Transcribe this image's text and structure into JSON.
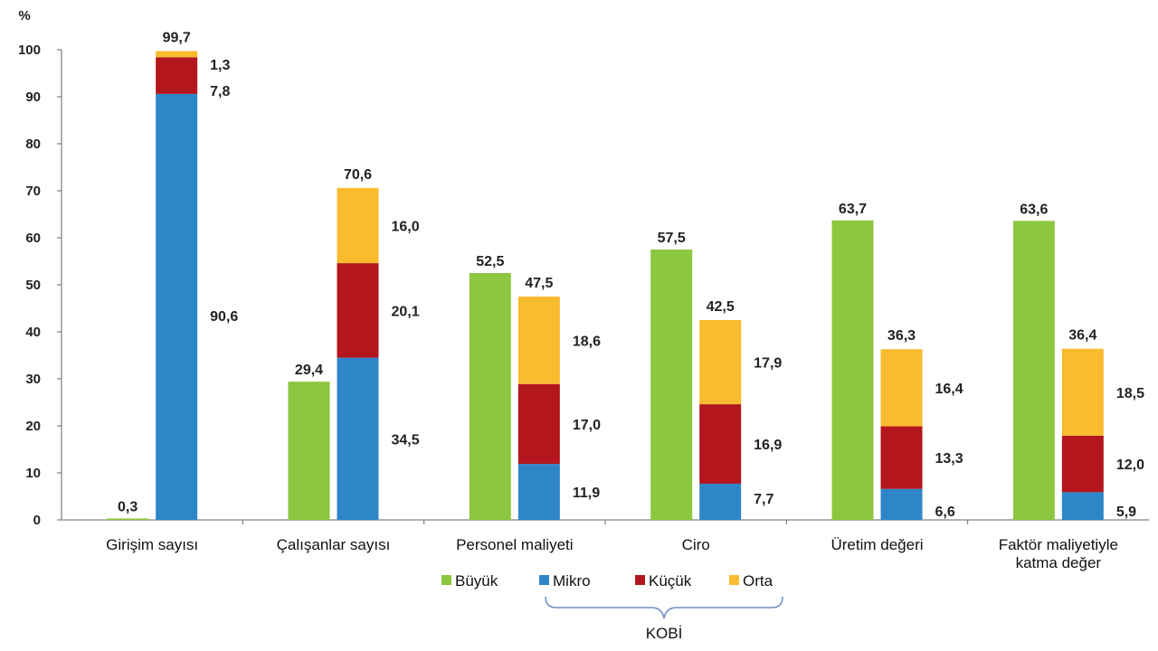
{
  "chart_data": {
    "type": "bar",
    "ylabel": "%",
    "ylim": [
      0,
      100
    ],
    "yticks": [
      "0",
      "10",
      "20",
      "30",
      "40",
      "50",
      "60",
      "70",
      "80",
      "90",
      "100"
    ],
    "categories": [
      "Girişim sayısı",
      "Çalışanlar sayısı",
      "Personel maliyeti",
      "Ciro",
      "Üretim değeri",
      "Faktör maliyetiyle katma değer"
    ],
    "category_lines": [
      [
        "Girişim sayısı"
      ],
      [
        "Çalışanlar sayısı"
      ],
      [
        "Personel maliyeti"
      ],
      [
        "Ciro"
      ],
      [
        "Üretim değeri"
      ],
      [
        "Faktör maliyetiyle",
        "katma değer"
      ]
    ],
    "series": [
      {
        "name": "Büyük",
        "color": "#8dc63f",
        "values": [
          0.3,
          29.4,
          52.5,
          57.5,
          63.7,
          63.6
        ],
        "labels": [
          "0,3",
          "29,4",
          "52,5",
          "57,5",
          "63,7",
          "63,6"
        ]
      },
      {
        "name": "Mikro",
        "color": "#2e86c8",
        "values": [
          90.6,
          34.5,
          11.9,
          7.7,
          6.6,
          5.9
        ],
        "labels": [
          "90,6",
          "34,5",
          "11,9",
          "7,7",
          "6,6",
          "5,9"
        ]
      },
      {
        "name": "Küçük",
        "color": "#b3161c",
        "values": [
          7.8,
          20.1,
          17.0,
          16.9,
          13.3,
          12.0
        ],
        "labels": [
          "7,8",
          "20,1",
          "17,0",
          "16,9",
          "13,3",
          "12,0"
        ]
      },
      {
        "name": "Orta",
        "color": "#fbbb2f",
        "values": [
          1.3,
          16.0,
          18.6,
          17.9,
          16.4,
          18.5
        ],
        "labels": [
          "1,3",
          "16,0",
          "18,6",
          "17,9",
          "16,4",
          "18,5"
        ]
      }
    ],
    "kobi_totals": [
      99.7,
      70.6,
      47.5,
      42.5,
      36.3,
      36.4
    ],
    "kobi_total_labels": [
      "99,7",
      "70,6",
      "47,5",
      "42,5",
      "36,3",
      "36,4"
    ],
    "kobi_group_label": "KOBİ",
    "legend_position": "bottom",
    "grid": false
  }
}
